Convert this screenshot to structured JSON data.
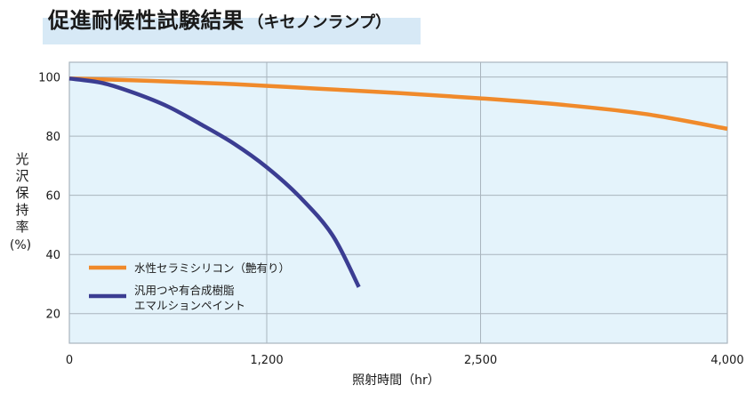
{
  "title": {
    "main": "促進耐候性試験結果",
    "sub": "（キセノンランプ）"
  },
  "colors": {
    "plot_background": "#e4f3fb",
    "grid": "#a9b4bd",
    "series_1": "#f08a2b",
    "series_2": "#3b3d92"
  },
  "chart_data": {
    "type": "line",
    "title": "促進耐候性試験結果（キセノンランプ）",
    "ylabel_chars": [
      "光",
      "沢",
      "保",
      "持",
      "率"
    ],
    "ylabel_unit": "(%)",
    "xlabel": "照射時間（hr）",
    "xlim": [
      0,
      4000
    ],
    "ylim": [
      10,
      105
    ],
    "x_ticks": [
      {
        "value": 0,
        "label": "0"
      },
      {
        "value": 1200,
        "label": "1,200"
      },
      {
        "value": 2500,
        "label": "2,500"
      },
      {
        "value": 4000,
        "label": "4,000"
      }
    ],
    "y_ticks": [
      {
        "value": 20,
        "label": "20"
      },
      {
        "value": 40,
        "label": "40"
      },
      {
        "value": 60,
        "label": "60"
      },
      {
        "value": 80,
        "label": "80"
      },
      {
        "value": 100,
        "label": "100"
      }
    ],
    "grid": true,
    "legend": "bottom-left",
    "series": [
      {
        "name": "水性セラミシリコン（艶有り）",
        "color": "#f08a2b",
        "x": [
          0,
          500,
          1000,
          1500,
          2000,
          2500,
          3000,
          3500,
          4000
        ],
        "y": [
          99.5,
          98.7,
          97.6,
          96.1,
          94.6,
          92.8,
          90.6,
          87.5,
          82.5
        ]
      },
      {
        "name": "汎用つや有合成樹脂エマルションペイント",
        "name_lines": [
          "汎用つや有合成樹脂",
          "エマルションペイント"
        ],
        "color": "#3b3d92",
        "x": [
          0,
          200,
          400,
          600,
          800,
          1000,
          1200,
          1400,
          1600,
          1760
        ],
        "y": [
          99.5,
          98.0,
          94.5,
          90.0,
          84.0,
          77.5,
          69.5,
          59.5,
          46.5,
          29.0
        ]
      }
    ]
  }
}
